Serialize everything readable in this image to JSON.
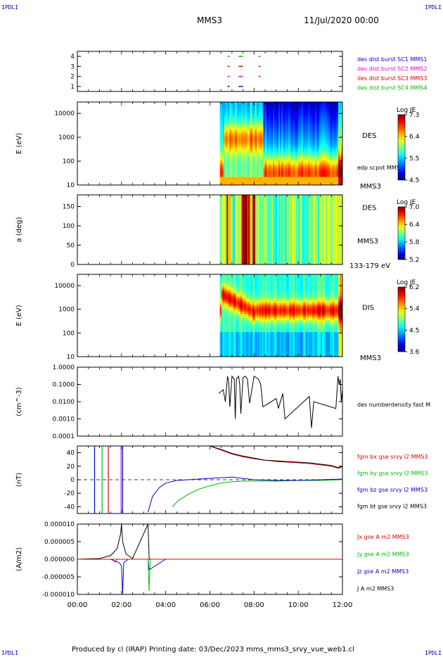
{
  "corners": {
    "tl": "IPDLI",
    "tr": "IPDLI",
    "bl": "IPDLI",
    "br": "IPDLI"
  },
  "header": {
    "title": "MMS3",
    "date": "11/Jul/2020 00:00"
  },
  "footer": "Produced by cl (IRAP)   Printing date: 03/Dec/2023   mms_mms3_srvy_vue_web1.cl",
  "colors": {
    "red": "#dd0000",
    "green": "#00bb00",
    "blue": "#0000cc",
    "magenta": "#dd00dd",
    "black": "#000000"
  },
  "chart_data": [
    {
      "type": "scatter",
      "name": "burst-availability",
      "xlim": [
        0,
        12
      ],
      "yticks": [
        "1",
        "2",
        "3",
        "4"
      ],
      "legend": [
        {
          "label": "des dist burst SC1 MMS1",
          "color": "#0000cc"
        },
        {
          "label": "des dist burst SC2 MMS2",
          "color": "#dd00dd"
        },
        {
          "label": "des dist burst SC3 MMS3",
          "color": "#dd0000"
        },
        {
          "label": "des dist burst SC4 MMS4",
          "color": "#00bb00"
        }
      ],
      "series": [
        {
          "sc": 1,
          "color": "#0000cc",
          "x": [
            6.8,
            7.3,
            7.4
          ]
        },
        {
          "sc": 2,
          "color": "#dd00dd",
          "x": [
            6.8,
            7.3,
            7.4,
            8.2
          ]
        },
        {
          "sc": 3,
          "color": "#dd0000",
          "x": [
            6.8,
            7.3,
            7.4,
            8.2
          ]
        },
        {
          "sc": 4,
          "color": "#00bb00",
          "x": [
            6.8,
            7.3,
            7.4,
            8.2
          ]
        }
      ]
    },
    {
      "type": "heatmap",
      "name": "des-energy-spectrogram",
      "ylabel": "E (eV)",
      "yscale": "log",
      "ylim": [
        10,
        30000
      ],
      "yticks": [
        "10",
        "100",
        "1000",
        "10000"
      ],
      "label": "DES",
      "sublabel": "edp scpot MMS3",
      "bottom_label": "MMS3",
      "colorbar": {
        "title": "Log JE",
        "ticks": [
          "7.3",
          "6.4",
          "5.5",
          "4.5"
        ],
        "range": [
          4.5,
          7.3
        ]
      },
      "data_start": 6.45
    },
    {
      "type": "heatmap",
      "name": "des-pitch-angle",
      "ylabel": "a (deg)",
      "ylim": [
        0,
        180
      ],
      "yticks": [
        "0",
        "50",
        "100",
        "150"
      ],
      "label": "DES",
      "sublabel": "MMS3",
      "bottom_label": "133-179 eV",
      "colorbar": {
        "title": "Log JE",
        "ticks": [
          "7.0",
          "6.4",
          "5.8",
          "5.2"
        ],
        "range": [
          5.2,
          7.0
        ]
      },
      "data_start": 6.45
    },
    {
      "type": "heatmap",
      "name": "dis-energy-spectrogram",
      "ylabel": "E (eV)",
      "yscale": "log",
      "ylim": [
        10,
        30000
      ],
      "yticks": [
        "10",
        "100",
        "1000",
        "10000"
      ],
      "label": "DIS",
      "bottom_label": "MMS3",
      "colorbar": {
        "title": "Log JE",
        "ticks": [
          "6.2",
          "5.4",
          "4.5",
          "3.6"
        ],
        "range": [
          3.6,
          6.2
        ]
      },
      "data_start": 6.45
    },
    {
      "type": "line",
      "name": "electron-density",
      "ylabel": "(cm^-3)",
      "yscale": "log",
      "ylim": [
        0.0001,
        1.0
      ],
      "yticks": [
        "0.0001",
        "0.0010",
        "0.0100",
        "0.1000",
        "1.0000"
      ],
      "legend": [
        {
          "label": "des numberdensity fast M",
          "color": "#000000"
        }
      ],
      "series": [
        {
          "name": "des numberdensity fast M",
          "color": "#000000",
          "x": [
            6.4,
            6.6,
            6.7,
            6.8,
            6.85,
            6.9,
            7.0,
            7.1,
            7.15,
            7.2,
            7.3,
            7.35,
            7.4,
            7.5,
            7.6,
            7.7,
            7.8,
            8.0,
            8.2,
            8.3,
            8.4,
            9.0,
            9.1,
            9.3,
            9.4,
            10.5,
            10.6,
            10.7,
            11.7,
            11.8,
            11.85,
            11.9,
            11.95,
            12.0
          ],
          "y": [
            0.03,
            0.05,
            0.01,
            0.3,
            0.15,
            0.005,
            0.3,
            0.2,
            0.001,
            0.2,
            0.3,
            0.1,
            0.002,
            0.25,
            0.3,
            0.2,
            0.008,
            0.3,
            0.2,
            0.1,
            0.005,
            0.015,
            0.004,
            0.03,
            0.001,
            0.02,
            0.0003,
            0.01,
            0.004,
            0.3,
            0.1,
            0.2,
            0.01,
            0.05
          ]
        }
      ]
    },
    {
      "type": "line",
      "name": "magnetic-field",
      "ylabel": "(nT)",
      "ylim": [
        -50,
        50
      ],
      "yticks": [
        "-40",
        "-20",
        "0",
        "20",
        "40"
      ],
      "legend": [
        {
          "label": "fgm bx gse srvy l2 MMS3",
          "color": "#dd0000"
        },
        {
          "label": "fgm by gse srvy l2 MMS3",
          "color": "#00bb00"
        },
        {
          "label": "fgm bz gse srvy l2 MMS3",
          "color": "#0000cc"
        },
        {
          "label": "fgm bt gse srvy l2 MMS3",
          "color": "#000000"
        }
      ],
      "series": [
        {
          "name": "bx",
          "color": "#dd0000",
          "x": [
            6.0,
            6.5,
            7.0,
            7.5,
            8.0,
            8.5,
            9.0,
            9.5,
            10.0,
            10.5,
            11.0,
            11.5,
            11.8,
            12.0
          ],
          "y": [
            50,
            44,
            38,
            34,
            31,
            29,
            27,
            26,
            25,
            24,
            22,
            20,
            17,
            19
          ]
        },
        {
          "name": "bt",
          "color": "#000000",
          "x": [
            6.0,
            6.5,
            7.0,
            7.5,
            8.0,
            8.5,
            9.0,
            9.5,
            10.0,
            10.5,
            11.0,
            11.5,
            11.8,
            12.0
          ],
          "y": [
            50,
            45,
            39,
            35,
            32,
            29,
            28,
            27,
            26,
            25,
            23,
            21,
            18,
            20
          ]
        },
        {
          "name": "by",
          "color": "#00bb00",
          "x": [
            4.3,
            4.6,
            5.0,
            5.5,
            6.0,
            6.5,
            7.0,
            7.5,
            8.0,
            9.0,
            10.0,
            11.0,
            12.0
          ],
          "y": [
            -40,
            -30,
            -22,
            -14,
            -9,
            -5,
            -3,
            -2,
            -2,
            -2,
            -1,
            -1,
            0
          ]
        },
        {
          "name": "bz",
          "color": "#0000cc",
          "x": [
            3.2,
            3.4,
            3.7,
            4.0,
            4.5,
            5.0,
            5.5,
            6.0,
            6.5,
            7.0,
            7.5,
            8.0,
            9.0,
            10.0,
            11.0,
            12.0
          ],
          "y": [
            -48,
            -25,
            -12,
            -5,
            -1,
            0,
            1,
            2,
            3,
            4,
            2,
            0,
            -1,
            -1,
            0,
            1
          ]
        }
      ]
    },
    {
      "type": "line",
      "name": "current-density",
      "ylabel": "(A/m2)",
      "ylim": [
        -1e-05,
        1e-05
      ],
      "yticks": [
        "-0.000010",
        "-0.000005",
        "0.000000",
        "0.000005",
        "0.000010"
      ],
      "legend": [
        {
          "label": "Jx gse A m2 MMS3",
          "color": "#dd0000"
        },
        {
          "label": "Jy gse A m2 MMS3",
          "color": "#00bb00"
        },
        {
          "label": "Jz gse A m2 MMS3",
          "color": "#0000cc"
        },
        {
          "label": "J A m2 MMS3",
          "color": "#000000"
        }
      ],
      "xticks": [
        "00:00",
        "02:00",
        "04:00",
        "06:00",
        "08:00",
        "10:00",
        "12:00"
      ],
      "series": [
        {
          "name": "J",
          "color": "#000000",
          "x": [
            0,
            1,
            1.5,
            1.8,
            1.95,
            2.0,
            2.05,
            2.2,
            2.5,
            3.2,
            3.25,
            3.3,
            4,
            12
          ],
          "y": [
            0,
            2e-07,
            1e-06,
            3e-06,
            7e-06,
            1e-05,
            5e-06,
            1.5e-06,
            2e-07,
            1e-05,
            3e-07,
            0,
            0,
            0
          ]
        },
        {
          "name": "Jz",
          "color": "#0000cc",
          "x": [
            0,
            1.5,
            1.9,
            2.0,
            2.05,
            2.1,
            2.3,
            3.2,
            3.25,
            4,
            12
          ],
          "y": [
            0,
            0,
            -1e-06,
            -2e-06,
            -1e-05,
            -1e-06,
            0,
            0,
            -3e-06,
            0,
            0
          ]
        },
        {
          "name": "Jy",
          "color": "#00bb00",
          "x": [
            0,
            3.2,
            3.25,
            3.3,
            12
          ],
          "y": [
            0,
            0,
            -9e-06,
            0,
            0
          ]
        },
        {
          "name": "Jx",
          "color": "#dd0000",
          "x": [
            0,
            1.6,
            1.7,
            1.8,
            12
          ],
          "y": [
            0,
            0,
            -8e-07,
            0,
            0
          ]
        }
      ]
    }
  ]
}
